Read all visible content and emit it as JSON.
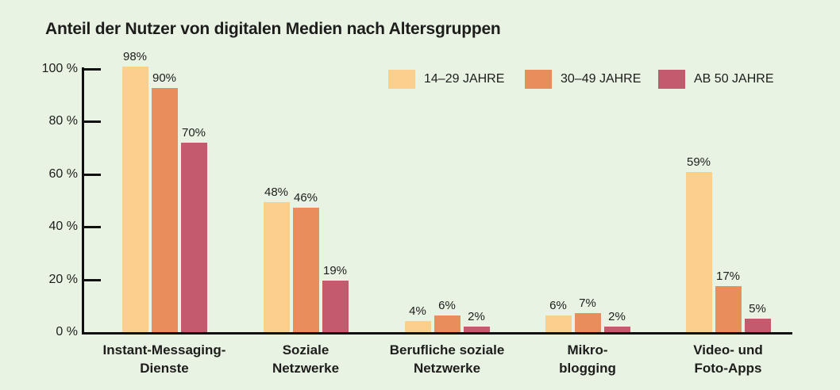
{
  "page": {
    "background": "#e8f3e3",
    "text_color": "#1d1d1b",
    "axis_color": "#101010"
  },
  "chart_data": {
    "type": "bar",
    "title": "Anteil der Nutzer von digitalen Medien nach Altersgruppen",
    "categories": [
      "Instant-Messaging-\nDienste",
      "Soziale\nNetzwerke",
      "Berufliche soziale\nNetzwerke",
      "Mikro-\nblogging",
      "Video- und\nFoto-Apps"
    ],
    "series": [
      {
        "name": "14–29 JAHRE",
        "color": "#fcd08c",
        "values": [
          98,
          48,
          4,
          6,
          59
        ]
      },
      {
        "name": "30–49 JAHRE",
        "color": "#e78e5c",
        "values": [
          90,
          46,
          6,
          7,
          17
        ]
      },
      {
        "name": "AB 50 JAHRE",
        "color": "#c45a6e",
        "values": [
          70,
          19,
          2,
          2,
          5
        ]
      }
    ],
    "value_suffix": "%",
    "y_axis": {
      "ticks": [
        0,
        20,
        40,
        60,
        80,
        100
      ],
      "tick_labels": [
        "0 %",
        "20 %",
        "40 %",
        "60 %",
        "80 %",
        "100 %"
      ],
      "max": 100
    },
    "grid": false,
    "legend_position": "top-right"
  }
}
